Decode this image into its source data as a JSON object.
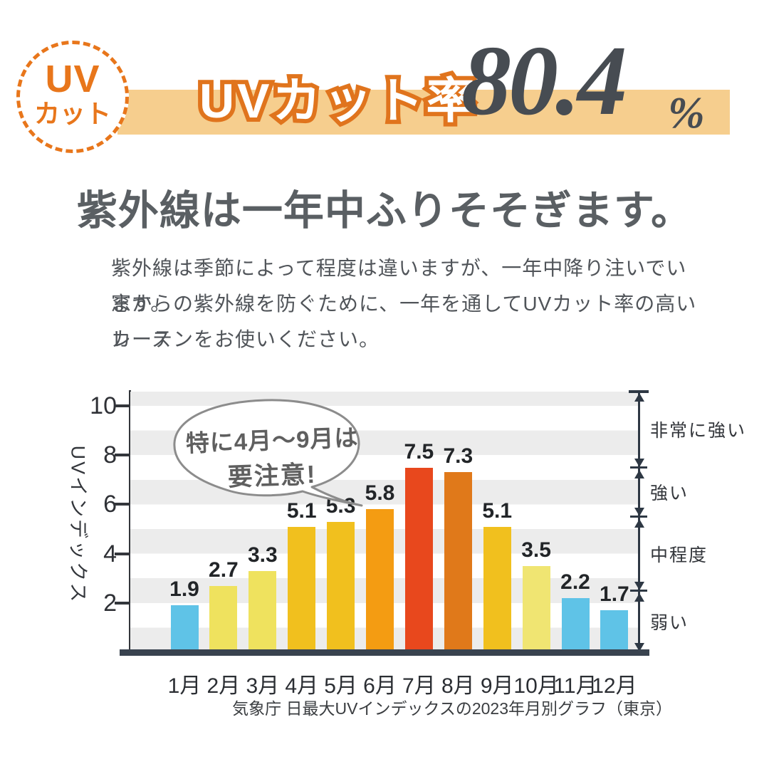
{
  "badge": {
    "line1": "UV",
    "line2": "カット"
  },
  "banner": {
    "label": "UVカット率",
    "value": "80.4",
    "unit": "%"
  },
  "heading": "紫外線は一年中ふりそそぎます。",
  "body": {
    "lines": [
      "紫外線は季節によって程度は違いますが、一年中降り注いでいます。",
      "窓からの紫外線を防ぐために、一年を通してUVカット率の高いレース",
      "カーテンをお使いください。"
    ]
  },
  "chart_data": {
    "type": "bar",
    "title": "",
    "categories": [
      "1月",
      "2月",
      "3月",
      "4月",
      "5月",
      "6月",
      "7月",
      "8月",
      "9月",
      "10月",
      "11月",
      "12月"
    ],
    "values": [
      1.9,
      2.7,
      3.3,
      5.1,
      5.3,
      5.8,
      7.5,
      7.3,
      5.1,
      3.5,
      2.2,
      1.7
    ],
    "bar_colors": [
      "#5FC3E7",
      "#EFE25E",
      "#EFE25E",
      "#F1C01E",
      "#F1C01E",
      "#F49C12",
      "#E8481D",
      "#E0791A",
      "#F1C01E",
      "#F0E572",
      "#5FC3E7",
      "#5FC3E7"
    ],
    "xlabel": "",
    "ylabel": "UVインデックス",
    "yticks": [
      2,
      4,
      6,
      8,
      10
    ],
    "ylim": [
      0,
      10.6
    ],
    "grid": "horizontal-stripes",
    "legend": "none",
    "annotation": {
      "line1": "特に4月〜9月は",
      "line2": "要注意!"
    },
    "right_scale": {
      "segments": [
        {
          "label": "非常に強い",
          "from": 7.5,
          "to": 10.6
        },
        {
          "label": "強い",
          "from": 5.5,
          "to": 7.5
        },
        {
          "label": "中程度",
          "from": 2.5,
          "to": 5.5
        },
        {
          "label": "弱い",
          "from": 0,
          "to": 2.5
        }
      ]
    },
    "caption": "気象庁 日最大UVインデックスの2023年月別グラフ（東京）"
  },
  "colors": {
    "accent_orange": "#E8761B",
    "banner_bg": "#F6CE8E",
    "number_gray": "#474C52",
    "heading_gray": "#5A5F63",
    "body_gray": "#505459",
    "stripe_gray": "#ECECEC",
    "baseline_navy": "#39434F"
  }
}
